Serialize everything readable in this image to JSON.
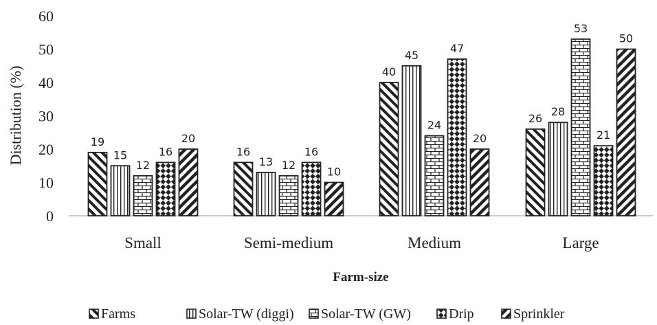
{
  "chart_data": {
    "type": "bar",
    "xlabel": "Farm-size",
    "ylabel": "Distribution (%)",
    "ylim": [
      0,
      60
    ],
    "yticks": [
      0,
      10,
      20,
      30,
      40,
      50,
      60
    ],
    "grid": false,
    "legend_position": "bottom",
    "categories": [
      "Small",
      "Semi-medium",
      "Medium",
      "Large"
    ],
    "series": [
      {
        "name": "Farms",
        "pattern": "diagonal-backslash",
        "values": [
          19,
          16,
          40,
          26
        ]
      },
      {
        "name": "Solar-TW (diggi)",
        "pattern": "vertical-lines",
        "values": [
          15,
          13,
          45,
          28
        ]
      },
      {
        "name": "Solar-TW (GW)",
        "pattern": "brick",
        "values": [
          12,
          12,
          24,
          53
        ]
      },
      {
        "name": "Drip",
        "pattern": "diamond-checker",
        "values": [
          16,
          16,
          47,
          21
        ]
      },
      {
        "name": "Sprinkler",
        "pattern": "diagonal-slash",
        "values": [
          20,
          10,
          20,
          50
        ]
      }
    ],
    "colors": {
      "ink": "#222222",
      "background": "#ffffff"
    }
  }
}
